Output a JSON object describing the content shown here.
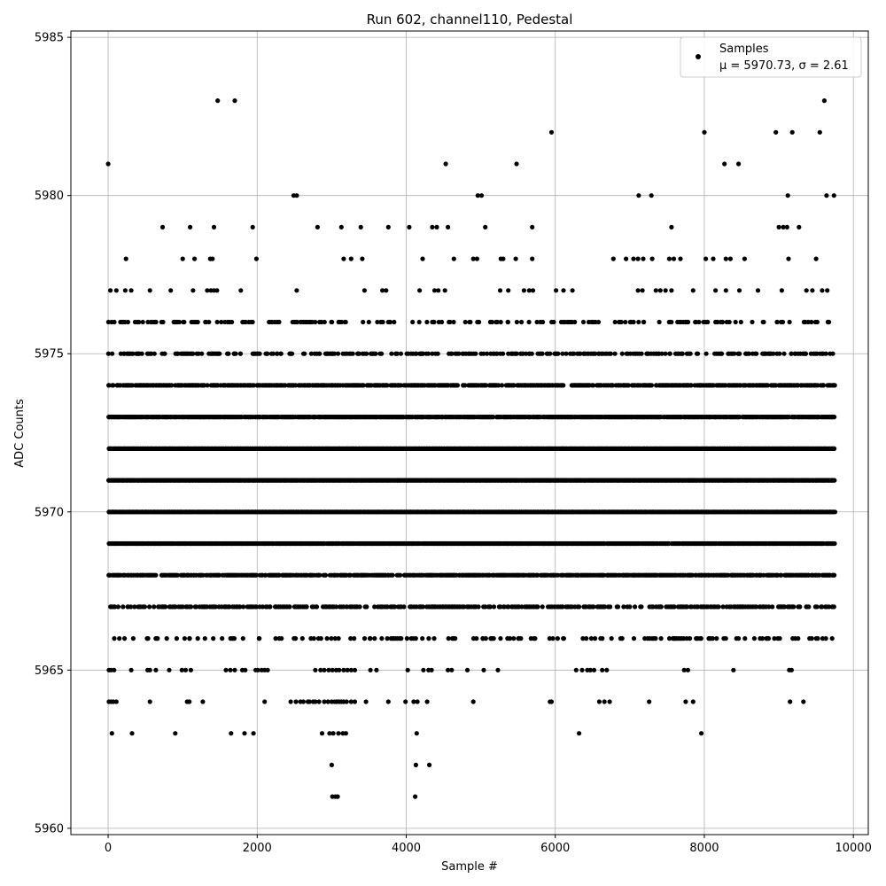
{
  "chart_data": {
    "type": "scatter",
    "title": "Run 602, channel110, Pedestal",
    "xlabel": "Sample #",
    "ylabel": "ADC Counts",
    "xlim": [
      -500,
      10200
    ],
    "ylim": [
      5959.8,
      5985.2
    ],
    "xticks": [
      0,
      2000,
      4000,
      6000,
      8000,
      10000
    ],
    "xtick_labels": [
      "0",
      "2000",
      "4000",
      "6000",
      "8000",
      "10000"
    ],
    "yticks": [
      5960,
      5965,
      5970,
      5975,
      5980,
      5985
    ],
    "ytick_labels": [
      "5960",
      "5965",
      "5970",
      "5975",
      "5980",
      "5985"
    ],
    "grid": true,
    "legend": {
      "placement": "upper-right",
      "marker_color": "#000000",
      "line1": "Samples",
      "line2": "μ = 5970.73, σ = 2.61"
    },
    "series": [
      {
        "name": "Samples",
        "color": "#000000",
        "n_samples": 9750,
        "rows": [
          {
            "y": 5961,
            "x": [
              3010,
              3050,
              3080,
              4120
            ]
          },
          {
            "y": 5962,
            "x": [
              3000,
              4130,
              4310
            ]
          },
          {
            "y": 5963,
            "x": [
              50,
              320,
              900,
              1650,
              1830,
              1950,
              2870,
              2970,
              3020,
              3090,
              3150,
              3190,
              4140,
              6320,
              7960
            ]
          },
          {
            "y": 5964,
            "x": [
              10,
              40,
              70,
              110,
              560,
              1060,
              1090,
              1270,
              2100,
              2450,
              2520,
              2580,
              2620,
              2680,
              2700,
              2750,
              2780,
              2830,
              2900,
              2950,
              3000,
              3040,
              3070,
              3100,
              3130,
              3160,
              3200,
              3260,
              3310,
              3460,
              3760,
              3990,
              4100,
              4150,
              4280,
              4900,
              5930,
              5950,
              6590,
              6660,
              6730,
              7260,
              7750,
              7850,
              9150,
              9330
            ]
          },
          {
            "y": 5965,
            "x": [
              10,
              40,
              80,
              310,
              530,
              560,
              640,
              820,
              990,
              1040,
              1110,
              1580,
              1640,
              1700,
              1800,
              1840,
              1980,
              2010,
              2060,
              2100,
              2140,
              2780,
              2850,
              2900,
              2960,
              3010,
              3060,
              3100,
              3160,
              3210,
              3260,
              3310,
              3520,
              3600,
              4020,
              4230,
              4300,
              4340,
              4560,
              4610,
              4820,
              5040,
              5230,
              6280,
              6360,
              6430,
              6470,
              6520,
              6630,
              6690,
              7730,
              7780,
              8390,
              9140,
              9170
            ]
          }
        ],
        "bands": [
          {
            "y": 5966,
            "density": 0.2
          },
          {
            "y": 5967,
            "density": 0.45
          },
          {
            "y": 5968,
            "density": 0.75
          },
          {
            "y": 5969,
            "density": 0.95
          },
          {
            "y": 5970,
            "density": 1.0
          },
          {
            "y": 5971,
            "density": 1.0
          },
          {
            "y": 5972,
            "density": 1.0
          },
          {
            "y": 5973,
            "density": 0.9
          },
          {
            "y": 5974,
            "density": 0.65
          },
          {
            "y": 5975,
            "density": 0.35
          },
          {
            "y": 5976,
            "density": 0.22
          }
        ],
        "upper_rows": [
          {
            "y": 5977,
            "x": [
              30,
              110,
              230,
              310,
              560,
              840,
              1140,
              1330,
              1380,
              1420,
              1460,
              1780,
              2530,
              3440,
              3680,
              3730,
              4180,
              4380,
              4430,
              4520,
              5260,
              5370,
              5580,
              5650,
              5700,
              6010,
              6110,
              6230,
              7110,
              7170,
              7350,
              7410,
              7480,
              7560,
              7850,
              8150,
              8290,
              8470,
              8720,
              9040,
              9370,
              9450,
              9580,
              9650
            ]
          },
          {
            "y": 5978,
            "x": [
              240,
              1000,
              1160,
              1370,
              1400,
              1990,
              3160,
              3260,
              3410,
              4220,
              4640,
              4900,
              4950,
              5270,
              5300,
              5470,
              5690,
              6780,
              6950,
              7050,
              7110,
              7180,
              7300,
              7530,
              7590,
              7680,
              8020,
              8120,
              8290,
              8350,
              8540,
              9130,
              9500
            ]
          },
          {
            "y": 5979,
            "x": [
              730,
              1100,
              1420,
              1940,
              2810,
              3130,
              3390,
              3760,
              4040,
              4350,
              4410,
              4560,
              5060,
              5690,
              7560,
              9000,
              9060,
              9110,
              9270
            ]
          },
          {
            "y": 5980,
            "x": [
              2490,
              2530,
              4960,
              5010,
              7120,
              7290,
              9120,
              9640,
              9740
            ]
          },
          {
            "y": 5981,
            "x": [
              0,
              4530,
              5480,
              8270,
              8460
            ]
          },
          {
            "y": 5982,
            "x": [
              5950,
              8000,
              8960,
              9180,
              9550
            ]
          },
          {
            "y": 5983,
            "x": [
              1470,
              1700,
              9610
            ]
          }
        ]
      }
    ]
  }
}
